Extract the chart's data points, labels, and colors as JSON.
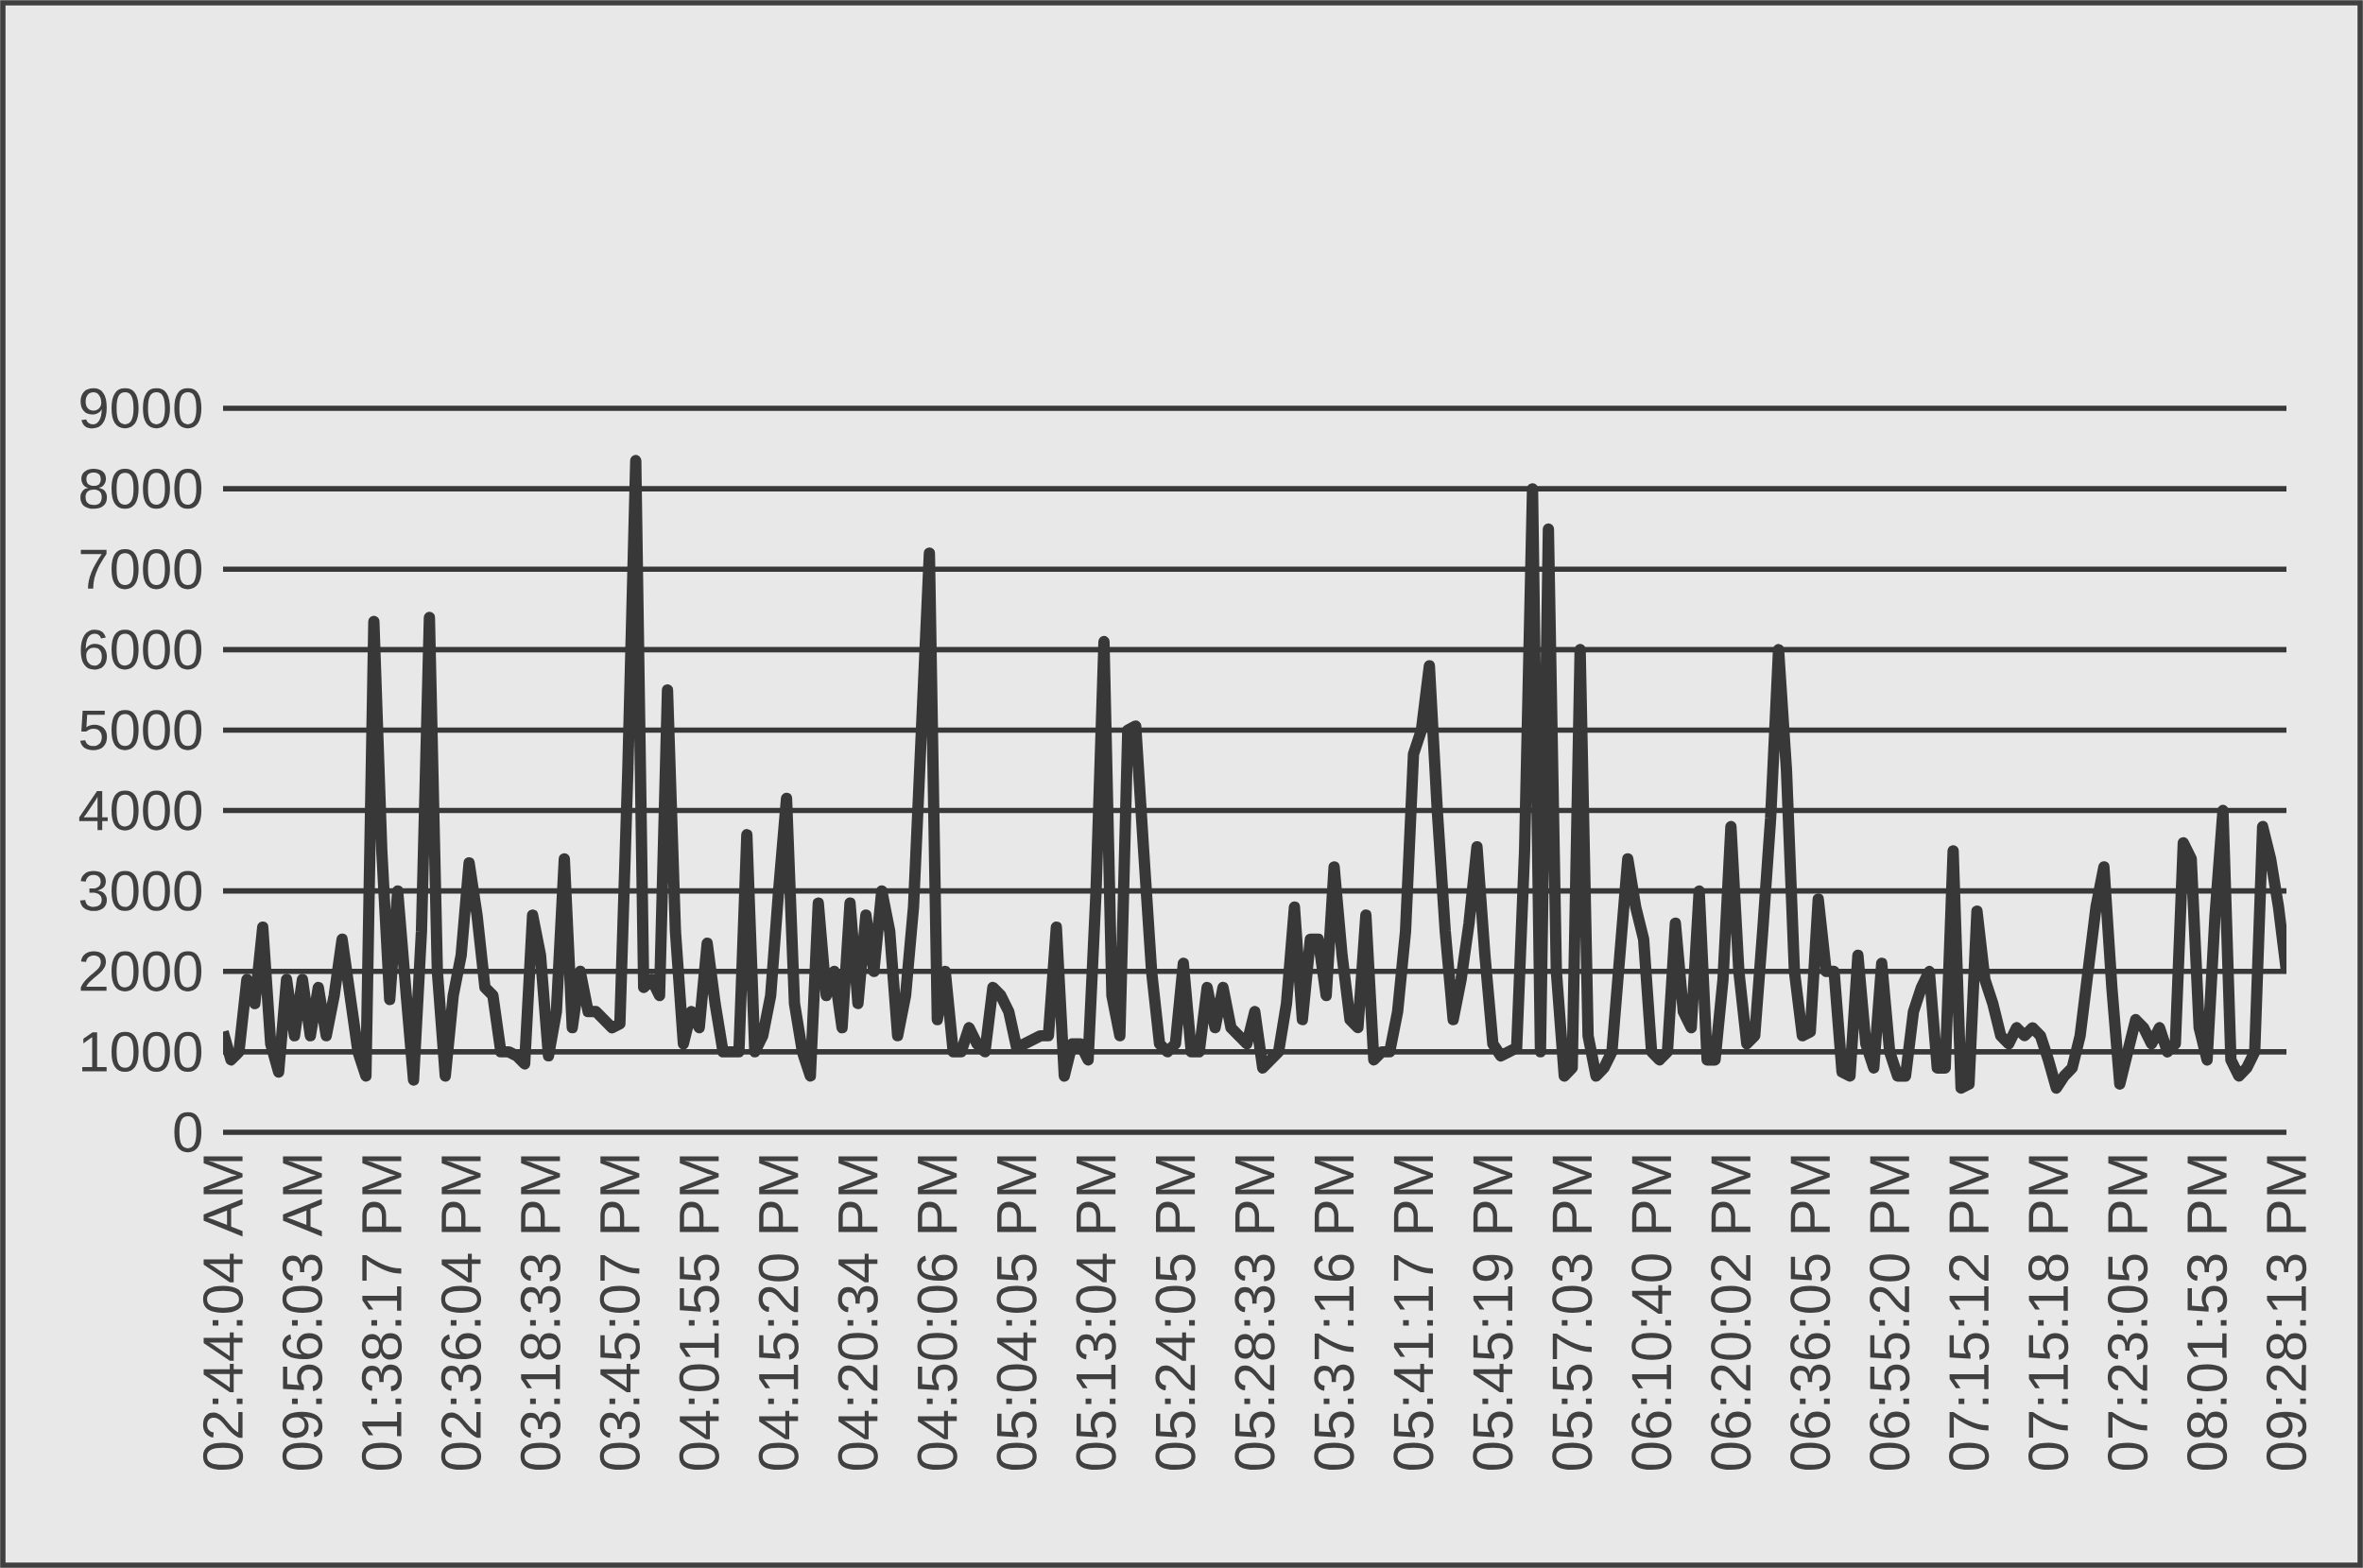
{
  "chart_data": {
    "type": "line",
    "categories": [
      "02:44:04 AM",
      null,
      null,
      null,
      null,
      null,
      null,
      null,
      null,
      null,
      "09:56:03 AM",
      null,
      null,
      null,
      null,
      null,
      null,
      null,
      null,
      null,
      "01:38:17 PM",
      null,
      null,
      null,
      null,
      null,
      null,
      null,
      null,
      null,
      "02:36:04 PM",
      null,
      null,
      null,
      null,
      null,
      null,
      null,
      null,
      null,
      "03:18:33 PM",
      null,
      null,
      null,
      null,
      null,
      null,
      null,
      null,
      null,
      "03:45:07 PM",
      null,
      null,
      null,
      null,
      null,
      null,
      null,
      null,
      null,
      "04:01:55 PM",
      null,
      null,
      null,
      null,
      null,
      null,
      null,
      null,
      null,
      "04:15:20 PM",
      null,
      null,
      null,
      null,
      null,
      null,
      null,
      null,
      null,
      "04:20:34 PM",
      null,
      null,
      null,
      null,
      null,
      null,
      null,
      null,
      null,
      "04:50:06 PM",
      null,
      null,
      null,
      null,
      null,
      null,
      null,
      null,
      null,
      "05:04:05 PM",
      null,
      null,
      null,
      null,
      null,
      null,
      null,
      null,
      null,
      "05:13:04 PM",
      null,
      null,
      null,
      null,
      null,
      null,
      null,
      null,
      null,
      "05:24:05 PM",
      null,
      null,
      null,
      null,
      null,
      null,
      null,
      null,
      null,
      "05:28:33 PM",
      null,
      null,
      null,
      null,
      null,
      null,
      null,
      null,
      null,
      "05:37:16 PM",
      null,
      null,
      null,
      null,
      null,
      null,
      null,
      null,
      null,
      "05:41:17 PM",
      null,
      null,
      null,
      null,
      null,
      null,
      null,
      null,
      null,
      "05:45:19 PM",
      null,
      null,
      null,
      null,
      null,
      null,
      null,
      null,
      null,
      "05:57:03 PM",
      null,
      null,
      null,
      null,
      null,
      null,
      null,
      null,
      null,
      "06:10:40 PM",
      null,
      null,
      null,
      null,
      null,
      null,
      null,
      null,
      null,
      "06:20:02 PM",
      null,
      null,
      null,
      null,
      null,
      null,
      null,
      null,
      null,
      "06:36:05 PM",
      null,
      null,
      null,
      null,
      null,
      null,
      null,
      null,
      null,
      "06:55:20 PM",
      null,
      null,
      null,
      null,
      null,
      null,
      null,
      null,
      null,
      "07:15:12 PM",
      null,
      null,
      null,
      null,
      null,
      null,
      null,
      null,
      null,
      "07:15:18 PM",
      null,
      null,
      null,
      null,
      null,
      null,
      null,
      null,
      null,
      "07:23:05 PM",
      null,
      null,
      null,
      null,
      null,
      null,
      null,
      null,
      null,
      "08:01:53 PM",
      null,
      null,
      null,
      null,
      null,
      null,
      null,
      null,
      null,
      "09:28:13 PM"
    ],
    "values": [
      1250,
      900,
      1000,
      1900,
      1600,
      2550,
      1100,
      750,
      1900,
      1200,
      1900,
      1200,
      1800,
      1200,
      1700,
      2400,
      1700,
      1000,
      700,
      6350,
      3500,
      1650,
      3000,
      1800,
      650,
      2500,
      6400,
      2000,
      700,
      1700,
      2200,
      3350,
      2700,
      1800,
      1700,
      1000,
      1000,
      950,
      850,
      2700,
      2200,
      950,
      1500,
      3400,
      1300,
      2000,
      1500,
      1500,
      1400,
      1300,
      1350,
      4500,
      8350,
      1800,
      1900,
      1700,
      5500,
      2500,
      1100,
      1500,
      1300,
      2350,
      1600,
      1000,
      1000,
      1000,
      3700,
      1000,
      1200,
      1700,
      3000,
      4150,
      1600,
      1000,
      700,
      2850,
      1700,
      2000,
      1300,
      2850,
      1600,
      2700,
      2000,
      3000,
      2500,
      1200,
      1700,
      2800,
      5000,
      7200,
      1400,
      2000,
      1000,
      1000,
      1300,
      1100,
      1000,
      1800,
      1700,
      1500,
      1050,
      1100,
      1150,
      1200,
      1200,
      2550,
      700,
      1100,
      1100,
      900,
      3000,
      6100,
      1700,
      1200,
      5000,
      5050,
      3500,
      2000,
      1100,
      1000,
      1100,
      2100,
      1000,
      1000,
      1800,
      1300,
      1800,
      1300,
      1200,
      1100,
      1500,
      800,
      900,
      1000,
      1600,
      2800,
      1400,
      2400,
      2400,
      1700,
      3300,
      2200,
      1400,
      1300,
      2700,
      900,
      1000,
      1000,
      1500,
      2500,
      4700,
      5000,
      5800,
      4000,
      2500,
      1400,
      1900,
      2600,
      3550,
      2200,
      1100,
      950,
      1000,
      1050,
      3500,
      8000,
      1000,
      7500,
      2000,
      700,
      800,
      6000,
      1200,
      700,
      800,
      1000,
      2200,
      3400,
      2800,
      2400,
      1000,
      900,
      1000,
      2600,
      1500,
      1300,
      3000,
      900,
      900,
      1900,
      3800,
      2000,
      1100,
      1200,
      2500,
      3900,
      6000,
      4500,
      2000,
      1200,
      1250,
      2900,
      2000,
      2000,
      750,
      700,
      2200,
      1100,
      800,
      2100,
      1000,
      700,
      700,
      1500,
      1800,
      2000,
      800,
      800,
      3500,
      550,
      600,
      2750,
      1900,
      1600,
      1200,
      1100,
      1300,
      1200,
      1300,
      1200,
      900,
      550,
      700,
      800,
      1200,
      2000,
      2800,
      3300,
      1800,
      600,
      1000,
      1400,
      1300,
      1100,
      1300,
      1000,
      1100,
      3600,
      3400,
      1300,
      900,
      2700,
      4000,
      900,
      700,
      800,
      1000,
      3800,
      3400,
      2800,
      2000
    ],
    "color": "#383838",
    "ylim": [
      0,
      9000
    ],
    "yticks": [
      0,
      1000,
      2000,
      3000,
      4000,
      5000,
      6000,
      7000,
      8000,
      9000
    ],
    "grid": "y"
  }
}
